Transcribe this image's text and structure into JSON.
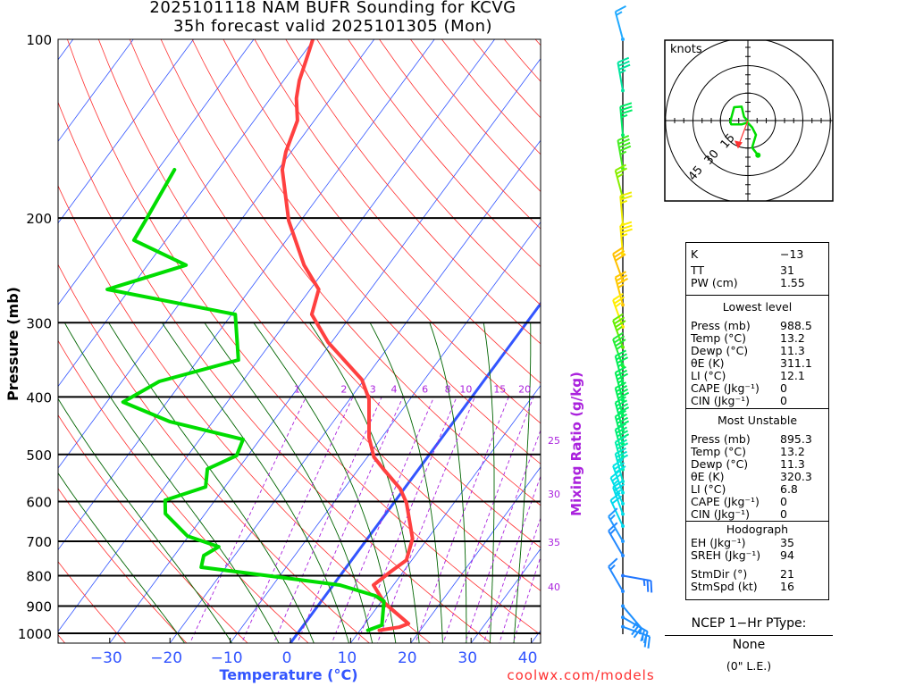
{
  "title": {
    "line1": "2025101118 NAM BUFR Sounding for KCVG",
    "line2": "35h forecast valid 2025101305 (Mon)"
  },
  "credit": "coolwx.com/models",
  "colors": {
    "temperature": "#ff4040",
    "dewpoint": "#00dd00",
    "isotherm": "#3355ff",
    "dry_adiabat": "#ff3030",
    "moist_adiabat": "#006400",
    "mixing_ratio": "#aa22dd",
    "axis_label": "#3355ff"
  },
  "chart_data": {
    "type": "line",
    "subtype": "skew-T log-P",
    "ylabel": "Pressure (mb)",
    "xlabel": "Temperature (°C)",
    "y_ticks": [
      "100",
      "200",
      "300",
      "400",
      "500",
      "600",
      "700",
      "800",
      "900",
      "1000"
    ],
    "x_ticks": [
      "−30",
      "−20",
      "−10",
      "0",
      "10",
      "20",
      "30",
      "40"
    ],
    "x_tick_values": [
      -30,
      -20,
      -10,
      0,
      10,
      20,
      30,
      40
    ],
    "ylim": [
      1040,
      100
    ],
    "xlim_at_bottom": [
      -38,
      42
    ],
    "mixing_ratio_label": "Mixing Ratio (g/kg)",
    "mixing_ratio_lines": [
      "1",
      "2",
      "3",
      "4",
      "6",
      "8",
      "10",
      "15",
      "20",
      "25",
      "30",
      "35",
      "40"
    ],
    "dry_adiabats_theta_c": [
      -50,
      -40,
      -30,
      -20,
      -10,
      0,
      10,
      20,
      30,
      40,
      50,
      60,
      70,
      80,
      90,
      100,
      110,
      120,
      130,
      140,
      150,
      160,
      170,
      180,
      190
    ],
    "moist_adiabats_thetaw_c": [
      -20,
      -12,
      -4,
      2,
      8,
      12,
      16,
      20,
      24,
      28,
      32,
      36
    ],
    "highlight_isotherm_c": 0,
    "series": [
      {
        "name": "Temperature",
        "color": "#ff4040",
        "points": [
          [
            100,
            -70.2
          ],
          [
            107.5,
            -68.9
          ],
          [
            117.3,
            -67.4
          ],
          [
            125.7,
            -65.7
          ],
          [
            137,
            -62.8
          ],
          [
            154.7,
            -60.9
          ],
          [
            165.8,
            -59.3
          ],
          [
            202,
            -52.0
          ],
          [
            240,
            -44.0
          ],
          [
            263.7,
            -38.6
          ],
          [
            290.5,
            -36.7
          ],
          [
            323.5,
            -30.6
          ],
          [
            374,
            -20.4
          ],
          [
            403.6,
            -16.8
          ],
          [
            468.4,
            -12.1
          ],
          [
            505,
            -8.9
          ],
          [
            532,
            -5.5
          ],
          [
            570.6,
            -0.7
          ],
          [
            603,
            2.1
          ],
          [
            693,
            7.5
          ],
          [
            753,
            9.1
          ],
          [
            787.6,
            7.9
          ],
          [
            829.6,
            6.7
          ],
          [
            889,
            10.7
          ],
          [
            963,
            17.2
          ],
          [
            976.7,
            16.1
          ],
          [
            988.5,
            13.2
          ]
        ]
      },
      {
        "name": "Dewpoint",
        "color": "#00dd00",
        "points": [
          [
            165.8,
            -77.2
          ],
          [
            202,
            -75.8
          ],
          [
            217.9,
            -75.3
          ],
          [
            240,
            -63.6
          ],
          [
            263.7,
            -73.7
          ],
          [
            290.5,
            -49.4
          ],
          [
            346.6,
            -43.3
          ],
          [
            376.7,
            -53.8
          ],
          [
            408,
            -57.3
          ],
          [
            440,
            -47.2
          ],
          [
            471.7,
            -32.8
          ],
          [
            502,
            -31.9
          ],
          [
            529,
            -35.1
          ],
          [
            567,
            -33.2
          ],
          [
            597,
            -38.3
          ],
          [
            629,
            -36.6
          ],
          [
            686,
            -30.2
          ],
          [
            715,
            -23.7
          ],
          [
            740,
            -25.1
          ],
          [
            774,
            -24.1
          ],
          [
            807,
            -8.7
          ],
          [
            829.6,
            1.1
          ],
          [
            864.8,
            8.3
          ],
          [
            883,
            10.4
          ],
          [
            969,
            13.0
          ],
          [
            988.5,
            11.3
          ]
        ]
      }
    ],
    "winds": [
      {
        "p": 100,
        "dir": 345,
        "spd": 15,
        "color": "#22aaff"
      },
      {
        "p": 122,
        "dir": 350,
        "spd": 35,
        "color": "#00e5a0"
      },
      {
        "p": 145,
        "dir": 355,
        "spd": 35,
        "color": "#00ee66"
      },
      {
        "p": 165,
        "dir": 350,
        "spd": 45,
        "color": "#44ee22"
      },
      {
        "p": 185,
        "dir": 345,
        "spd": 25,
        "color": "#88ee00"
      },
      {
        "p": 205,
        "dir": 355,
        "spd": 25,
        "color": "#eeee00"
      },
      {
        "p": 230,
        "dir": 355,
        "spd": 35,
        "color": "#ffee00"
      },
      {
        "p": 255,
        "dir": 340,
        "spd": 30,
        "color": "#ffc000"
      },
      {
        "p": 280,
        "dir": 345,
        "spd": 35,
        "color": "#ffc800"
      },
      {
        "p": 305,
        "dir": 340,
        "spd": 25,
        "color": "#ffee00"
      },
      {
        "p": 330,
        "dir": 340,
        "spd": 35,
        "color": "#66ee00"
      },
      {
        "p": 355,
        "dir": 340,
        "spd": 35,
        "color": "#22ee33"
      },
      {
        "p": 380,
        "dir": 345,
        "spd": 35,
        "color": "#00ee55"
      },
      {
        "p": 405,
        "dir": 345,
        "spd": 35,
        "color": "#00ee55"
      },
      {
        "p": 430,
        "dir": 345,
        "spd": 40,
        "color": "#00ee55"
      },
      {
        "p": 455,
        "dir": 345,
        "spd": 40,
        "color": "#00ee66"
      },
      {
        "p": 480,
        "dir": 345,
        "spd": 40,
        "color": "#00ee66"
      },
      {
        "p": 505,
        "dir": 345,
        "spd": 40,
        "color": "#00ee77"
      },
      {
        "p": 530,
        "dir": 345,
        "spd": 35,
        "color": "#00eeaa"
      },
      {
        "p": 555,
        "dir": 345,
        "spd": 30,
        "color": "#00e5cc"
      },
      {
        "p": 580,
        "dir": 340,
        "spd": 30,
        "color": "#00e5e5"
      },
      {
        "p": 605,
        "dir": 335,
        "spd": 25,
        "color": "#00e0e8"
      },
      {
        "p": 630,
        "dir": 340,
        "spd": 25,
        "color": "#00dde8"
      },
      {
        "p": 660,
        "dir": 335,
        "spd": 20,
        "color": "#00d8ee"
      },
      {
        "p": 700,
        "dir": 330,
        "spd": 15,
        "color": "#2299ff"
      },
      {
        "p": 740,
        "dir": 330,
        "spd": 15,
        "color": "#2288ff"
      },
      {
        "p": 800,
        "dir": 100,
        "spd": 25,
        "color": "#2277ff"
      },
      {
        "p": 850,
        "dir": 330,
        "spd": 15,
        "color": "#2288ff"
      },
      {
        "p": 900,
        "dir": 140,
        "spd": 25,
        "color": "#1e90ff"
      },
      {
        "p": 940,
        "dir": 120,
        "spd": 25,
        "color": "#1e90ff"
      },
      {
        "p": 975,
        "dir": 110,
        "spd": 25,
        "color": "#1e90ff"
      }
    ],
    "hodograph": {
      "unit_label": "knots",
      "ring_labels": [
        "15",
        "30",
        "45"
      ],
      "ring_values": [
        15,
        30,
        45
      ],
      "uv_knots": [
        [
          5.5,
          -18.9
        ],
        [
          2.3,
          -14.8
        ],
        [
          4.4,
          -7.8
        ],
        [
          2.3,
          -3.7
        ],
        [
          -0.2,
          -1.0
        ],
        [
          -3.4,
          -2.1
        ],
        [
          -9.1,
          -2.1
        ],
        [
          -9.6,
          -0.5
        ],
        [
          -7.5,
          7.3
        ],
        [
          -3.4,
          7.6
        ],
        [
          -2.1,
          2.0
        ],
        [
          0.3,
          -0.5
        ]
      ],
      "storm_motion_uv": [
        -5.4,
        -14.3
      ]
    }
  },
  "indices": {
    "top": [
      {
        "k": "K",
        "v": "−13"
      },
      {
        "k": "TT",
        "v": "31"
      },
      {
        "k": "PW (cm)",
        "v": "1.55"
      }
    ],
    "lowest_level": {
      "header": "Lowest level",
      "rows": [
        {
          "k": "Press (mb)",
          "v": "988.5"
        },
        {
          "k": "Temp (°C)",
          "v": "13.2"
        },
        {
          "k": "Dewp (°C)",
          "v": "11.3"
        },
        {
          "k": "θE (K)",
          "v": "311.1"
        },
        {
          "k": "LI (°C)",
          "v": "12.1"
        },
        {
          "k": "CAPE (Jkg⁻¹)",
          "v": "0"
        },
        {
          "k": "CIN (Jkg⁻¹)",
          "v": "0"
        }
      ]
    },
    "most_unstable": {
      "header": "Most Unstable",
      "rows": [
        {
          "k": "Press (mb)",
          "v": "895.3"
        },
        {
          "k": "Temp (°C)",
          "v": "13.2"
        },
        {
          "k": "Dewp (°C)",
          "v": "11.3"
        },
        {
          "k": "θE (K)",
          "v": "320.3"
        },
        {
          "k": "LI (°C)",
          "v": "6.8"
        },
        {
          "k": "CAPE (Jkg⁻¹)",
          "v": "0"
        },
        {
          "k": "CIN (Jkg⁻¹)",
          "v": "0"
        }
      ]
    },
    "hodograph": {
      "header": "Hodograph",
      "rows": [
        {
          "k": "EH (Jkg⁻¹)",
          "v": "35"
        },
        {
          "k": "SREH (Jkg⁻¹)",
          "v": "94"
        }
      ],
      "storm_rows": [
        {
          "k": "StmDir (°)",
          "v": "21"
        },
        {
          "k": "StmSpd (kt)",
          "v": "16"
        }
      ]
    }
  },
  "ptype": {
    "label": "NCEP 1−Hr PType:",
    "value": "None",
    "amount": "(0\" L.E.)"
  }
}
